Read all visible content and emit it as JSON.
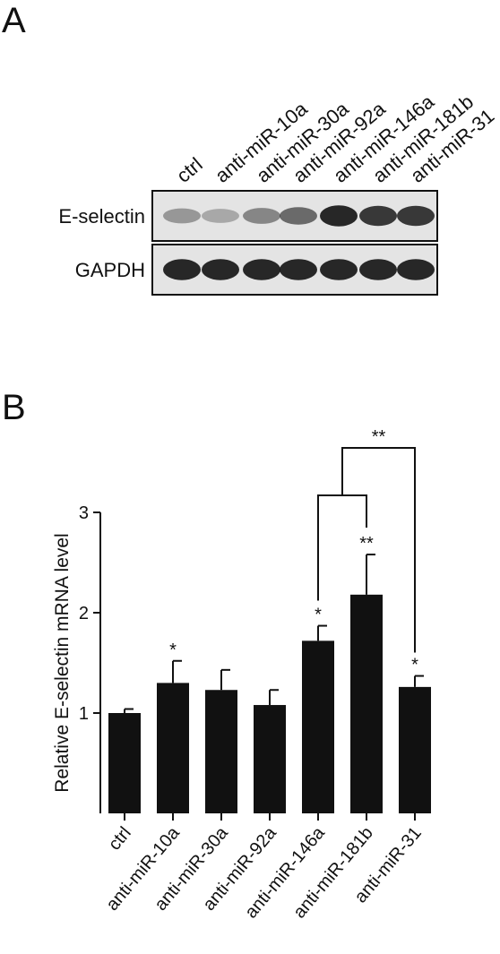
{
  "panel_a": {
    "letter": "A",
    "lanes": [
      "ctrl",
      "anti-miR-10a",
      "anti-miR-30a",
      "anti-miR-92a",
      "anti-miR-146a",
      "anti-miR-181b",
      "anti-miR-31"
    ],
    "rows": [
      {
        "label": "E-selectin",
        "band_intensity": [
          0.28,
          0.18,
          0.38,
          0.55,
          0.95,
          0.85,
          0.85
        ]
      },
      {
        "label": "GAPDH",
        "band_intensity": [
          0.95,
          0.95,
          0.95,
          0.95,
          0.95,
          0.95,
          0.95
        ]
      }
    ]
  },
  "panel_b": {
    "letter": "B"
  },
  "colors": {
    "bar": "#111111",
    "blot_bg": "#e4e4e4",
    "band": "#141414"
  },
  "chart_data": {
    "type": "bar",
    "categories": [
      "ctrl",
      "anti-miR-10a",
      "anti-miR-30a",
      "anti-miR-92a",
      "anti-miR-146a",
      "anti-miR-181b",
      "anti-miR-31"
    ],
    "values": [
      1.0,
      1.3,
      1.23,
      1.08,
      1.72,
      2.18,
      1.26
    ],
    "errors": [
      0.04,
      0.22,
      0.2,
      0.15,
      0.15,
      0.4,
      0.11
    ],
    "significance": [
      "",
      "*",
      "",
      "",
      "*",
      "**",
      "*"
    ],
    "bracket_label": "**",
    "ylabel": "Relative E-selectin mRNA level",
    "xlabel": "",
    "ylim": [
      0,
      3
    ],
    "yticks": [
      1,
      2,
      3
    ],
    "grid": false
  }
}
